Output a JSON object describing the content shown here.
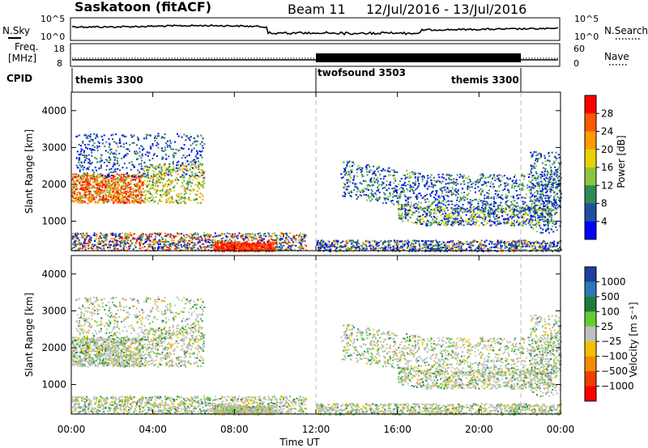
{
  "header": {
    "station": "Saskatoon (fitACF)",
    "beam": "Beam 11",
    "date_range": "12/Jul/2016 - 13/Jul/2016"
  },
  "noise_panel": {
    "left_label": "N.Sky",
    "right_label": "N.Search",
    "left_ticks": [
      "10^5",
      "10^0"
    ],
    "right_ticks": [
      "10^5",
      "10^0"
    ]
  },
  "freq_panel": {
    "left_label_1": "Freq.",
    "left_label_2": "[MHz]",
    "right_label": "Nave",
    "left_ticks": [
      "18",
      "8"
    ],
    "right_ticks": [
      "60",
      "0"
    ]
  },
  "cpid_panel": {
    "label": "CPID",
    "segments": [
      {
        "name": "themis 3300"
      },
      {
        "name": "twofsound 3503"
      },
      {
        "name": "themis 3300"
      }
    ]
  },
  "power_panel": {
    "ylabel": "Slant Range [km]",
    "colorbar_label": "Power [dB]",
    "colorbar_ticks": [
      "28",
      "24",
      "20",
      "16",
      "12",
      "8",
      "4"
    ],
    "colorbar_colors": [
      "#ff0000",
      "#ff5a00",
      "#ff9a00",
      "#e8d400",
      "#8cc63e",
      "#2e8b57",
      "#1e4fa0",
      "#0000ff"
    ]
  },
  "velocity_panel": {
    "ylabel": "Slant Range [km]",
    "colorbar_label": "Velocity [m s⁻¹]",
    "colorbar_ticks": [
      "1000",
      "500",
      "100",
      "25",
      "−25",
      "−100",
      "−500",
      "−1000"
    ],
    "colorbar_colors": [
      "#1f3fa0",
      "#2a7ab8",
      "#227a3a",
      "#66cc33",
      "#c0c0c0",
      "#f5c000",
      "#f28c00",
      "#f04000",
      "#ff0000"
    ]
  },
  "x_axis": {
    "label": "Time UT",
    "ticks": [
      "00:00",
      "04:00",
      "08:00",
      "12:00",
      "16:00",
      "20:00",
      "00:00"
    ]
  },
  "chart_data": [
    {
      "type": "heatmap",
      "title": "Power",
      "xlabel": "Time UT",
      "ylabel": "Slant Range [km]",
      "xlim_hours": [
        0,
        24
      ],
      "ylim": [
        200,
        4500
      ],
      "yticks": [
        1000,
        2000,
        3000,
        4000
      ],
      "colorbar": {
        "label": "Power [dB]",
        "range": [
          0,
          32
        ],
        "ticks": [
          4,
          8,
          12,
          16,
          20,
          24,
          28
        ]
      },
      "vertical_markers_hours": [
        12,
        22
      ]
    },
    {
      "type": "heatmap",
      "title": "Velocity",
      "xlabel": "Time UT",
      "ylabel": "Slant Range [km]",
      "xlim_hours": [
        0,
        24
      ],
      "ylim": [
        200,
        4500
      ],
      "yticks": [
        1000,
        2000,
        3000,
        4000
      ],
      "colorbar": {
        "label": "Velocity [m s⁻¹]",
        "ticks": [
          1000,
          500,
          100,
          25,
          -25,
          -100,
          -500,
          -1000
        ]
      },
      "vertical_markers_hours": [
        12,
        22
      ]
    }
  ]
}
